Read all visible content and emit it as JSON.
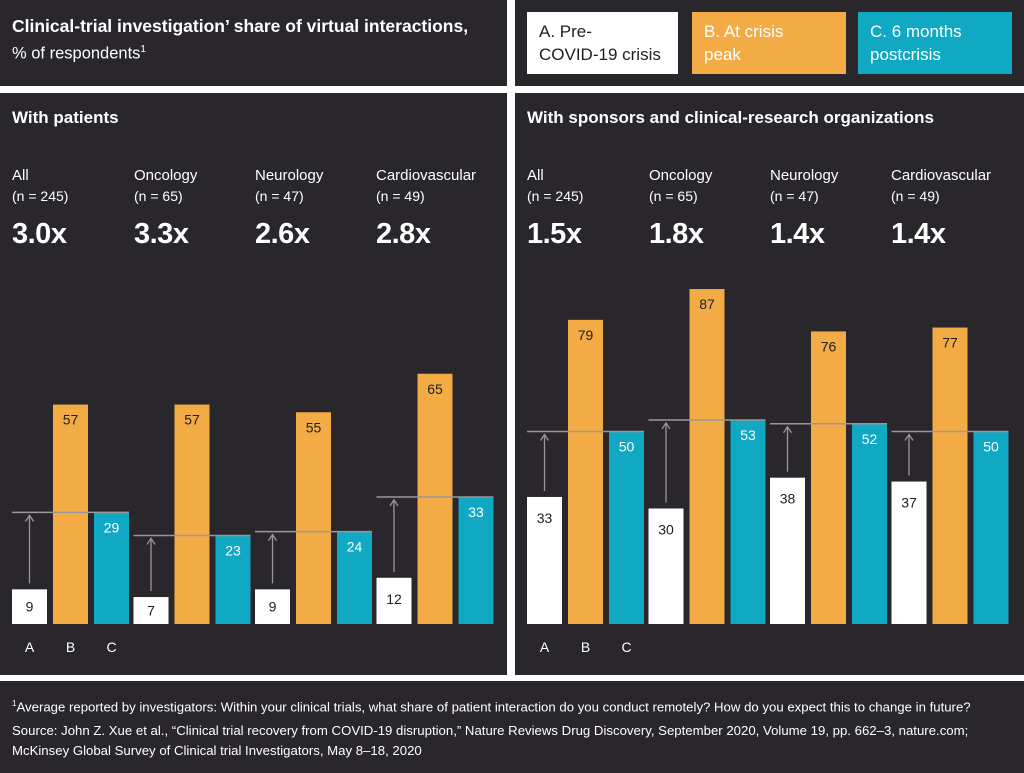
{
  "header": {
    "title_bold": "Clinical-trial investigation’ share of virtual interactions,",
    "title_light": "% of respondents",
    "title_sup": "1"
  },
  "legend": [
    {
      "label_line1": "A. Pre-",
      "label_line2": "COVID-19 crisis",
      "color": "#ffffff",
      "text_color": "#1f1f1f"
    },
    {
      "label_line1": "B. At crisis",
      "label_line2": "peak",
      "color": "#f3ac45",
      "text_color": "#ffffff"
    },
    {
      "label_line1": "C. 6 months",
      "label_line2": "postcrisis",
      "color": "#10a8c2",
      "text_color": "#ffffff"
    }
  ],
  "colors": {
    "background": "#2a272c",
    "pre": "#ffffff",
    "peak": "#f3ac45",
    "post": "#10a8c2",
    "marker_line": "#9a979b",
    "divider": "#ffffff"
  },
  "panels": [
    {
      "title": "With patients",
      "axis_letters": [
        "A",
        "B",
        "C"
      ],
      "groups": [
        {
          "name": "All",
          "n": "(n = 245)",
          "multiplier": "3.0x"
        },
        {
          "name": "Oncology",
          "n": "(n = 65)",
          "multiplier": "3.3x"
        },
        {
          "name": "Neurology",
          "n": "(n = 47)",
          "multiplier": "2.6x"
        },
        {
          "name": "Cardiovascular",
          "n": "(n = 49)",
          "multiplier": "2.8x"
        }
      ]
    },
    {
      "title": "With sponsors and clinical-research organizations",
      "axis_letters": [
        "A",
        "B",
        "C"
      ],
      "groups": [
        {
          "name": "All",
          "n": "(n = 245)",
          "multiplier": "1.5x"
        },
        {
          "name": "Oncology",
          "n": "(n = 65)",
          "multiplier": "1.8x"
        },
        {
          "name": "Neurology",
          "n": "(n = 47)",
          "multiplier": "1.4x"
        },
        {
          "name": "Cardiovascular",
          "n": "(n = 49)",
          "multiplier": "1.4x"
        }
      ]
    }
  ],
  "chart_data": [
    {
      "type": "bar",
      "title": "With patients",
      "categories": [
        "All",
        "Oncology",
        "Neurology",
        "Cardiovascular"
      ],
      "series": [
        {
          "name": "A. Pre-COVID-19 crisis",
          "values": [
            9,
            7,
            9,
            12
          ]
        },
        {
          "name": "B. At crisis peak",
          "values": [
            57,
            57,
            55,
            65
          ]
        },
        {
          "name": "C. 6 months postcrisis",
          "values": [
            29,
            23,
            24,
            33
          ]
        }
      ],
      "ylim": [
        0,
        100
      ],
      "grid": false
    },
    {
      "type": "bar",
      "title": "With sponsors and clinical-research organizations",
      "categories": [
        "All",
        "Oncology",
        "Neurology",
        "Cardiovascular"
      ],
      "series": [
        {
          "name": "A. Pre-COVID-19 crisis",
          "values": [
            33,
            30,
            38,
            37
          ]
        },
        {
          "name": "B. At crisis peak",
          "values": [
            79,
            87,
            76,
            77
          ]
        },
        {
          "name": "C. 6 months postcrisis",
          "values": [
            50,
            53,
            52,
            50
          ]
        }
      ],
      "ylim": [
        0,
        100
      ],
      "grid": false
    }
  ],
  "footnotes": {
    "note_sup": "1",
    "note": "Average reported by investigators: Within your clinical trials, what share of patient interaction do you conduct remotely? How do you expect this to change in future?",
    "source_line1": "Source: John Z. Xue et al., “Clinical trial recovery from COVID-19 disruption,” Nature Reviews Drug Discovery, September 2020, Volume 19, pp. 662–3, nature.com;",
    "source_line2": "McKinsey Global Survey of Clinical trial Investigators, May 8–18, 2020"
  }
}
